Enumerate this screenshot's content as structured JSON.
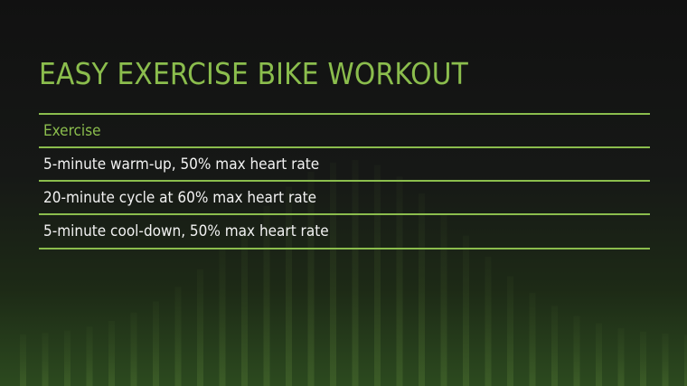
{
  "title": "EASY EXERCISE BIKE WORKOUT",
  "table": {
    "header": "Exercise",
    "rows": [
      "5-minute warm-up, 50% max heart rate",
      "20-minute cycle at 60% max heart rate",
      "5-minute cool-down, 50% max heart rate"
    ]
  },
  "colors": {
    "accent": "#8bbd4d",
    "text": "#f2f2f2",
    "background_top": "#111111",
    "background_bottom": "#2c4a1f"
  }
}
